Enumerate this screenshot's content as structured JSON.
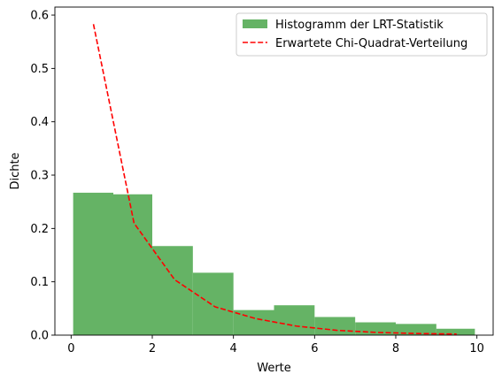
{
  "chart_data": {
    "type": "bar",
    "xlabel": "Werte",
    "ylabel": "Dichte",
    "xlim": [
      -0.4,
      10.4
    ],
    "ylim": [
      0,
      0.615
    ],
    "xticks": [
      0,
      2,
      4,
      6,
      8,
      10
    ],
    "yticks": [
      0.0,
      0.1,
      0.2,
      0.3,
      0.4,
      0.5,
      0.6
    ],
    "legend_position": "top-right",
    "histogram": {
      "name": "Histogramm der LRT-Statistik",
      "color": "#65b365",
      "bin_edges": [
        0.05,
        1.04,
        2.0,
        3.0,
        4.0,
        5.0,
        6.0,
        7.0,
        8.0,
        9.0,
        9.95
      ],
      "values": [
        0.267,
        0.264,
        0.167,
        0.117,
        0.047,
        0.056,
        0.034,
        0.024,
        0.021,
        0.012
      ]
    },
    "line": {
      "name": "Erwartete Chi-Quadrat-Verteilung",
      "color": "#ff0000",
      "style": "dashed",
      "x": [
        0.55,
        1.55,
        2.55,
        3.55,
        4.55,
        5.55,
        6.55,
        7.55,
        8.55,
        9.5
      ],
      "y": [
        0.583,
        0.21,
        0.104,
        0.053,
        0.031,
        0.017,
        0.009,
        0.005,
        0.003,
        0.002
      ]
    }
  }
}
